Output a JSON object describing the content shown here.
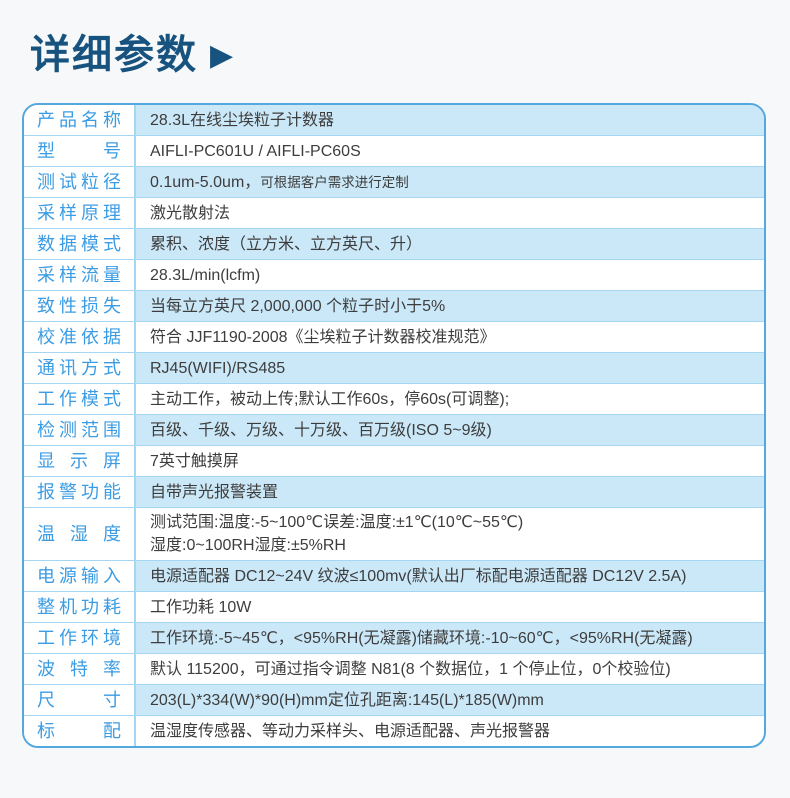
{
  "header": {
    "title": "详细参数",
    "arrow": "▶"
  },
  "colors": {
    "title": "#17537e",
    "table_border": "#54a8de",
    "row_separator": "#a6d7f2",
    "alt_row_bg": "#cbe8f8",
    "label_text": "#3b9ce4",
    "value_text": "#3d3d3d",
    "page_bg": "#f6f8fa"
  },
  "table": {
    "rows": [
      {
        "label": "产品名称",
        "lines": [
          "28.3L在线尘埃粒子计数器"
        ]
      },
      {
        "label": "型号",
        "lines": [
          "AIFLI-PC601U / AIFLI-PC60S"
        ]
      },
      {
        "label": "测试粒径",
        "lines": [
          "0.1um-5.0um，"
        ],
        "note": "可根据客户需求进行定制"
      },
      {
        "label": "采样原理",
        "lines": [
          "激光散射法"
        ]
      },
      {
        "label": "数据模式",
        "lines": [
          "累积、浓度（立方米、立方英尺、升）"
        ]
      },
      {
        "label": "采样流量",
        "lines": [
          "28.3L/min(lcfm)"
        ]
      },
      {
        "label": "致性损失",
        "lines": [
          "当每立方英尺 2,000,000 个粒子时小于5%"
        ]
      },
      {
        "label": "校准依据",
        "lines": [
          "符合 JJF1190-2008《尘埃粒子计数器校准规范》"
        ]
      },
      {
        "label": "通讯方式",
        "lines": [
          "RJ45(WIFI)/RS485"
        ]
      },
      {
        "label": "工作模式",
        "lines": [
          "主动工作，被动上传;默认工作60s，停60s(可调整);"
        ]
      },
      {
        "label": "检测范围",
        "lines": [
          "百级、千级、万级、十万级、百万级(ISO 5~9级)"
        ]
      },
      {
        "label": "显示屏",
        "lines": [
          "7英寸触摸屏"
        ]
      },
      {
        "label": "报警功能",
        "lines": [
          "自带声光报警装置"
        ]
      },
      {
        "label": "温湿度",
        "lines": [
          "测试范围:温度:-5~100℃误差:温度:±1℃(10℃~55℃)",
          "湿度:0~100RH湿度:±5%RH"
        ]
      },
      {
        "label": "电源输入",
        "lines": [
          "电源适配器 DC12~24V 纹波≤100mv(默认出厂标配电源适配器 DC12V 2.5A)"
        ]
      },
      {
        "label": "整机功耗",
        "lines": [
          "工作功耗 10W"
        ]
      },
      {
        "label": "工作环境",
        "lines": [
          "工作环境:-5~45℃，<95%RH(无凝露)储藏环境:-10~60℃，<95%RH(无凝露)"
        ]
      },
      {
        "label": "波特率",
        "lines": [
          "默认 115200，可通过指令调整 N81(8 个数据位，1 个停止位，0个校验位)"
        ]
      },
      {
        "label": "尺寸",
        "lines": [
          "203(L)*334(W)*90(H)mm定位孔距离:145(L)*185(W)mm"
        ]
      },
      {
        "label": "标配",
        "lines": [
          "温湿度传感器、等动力采样头、电源适配器、声光报警器"
        ]
      }
    ]
  }
}
